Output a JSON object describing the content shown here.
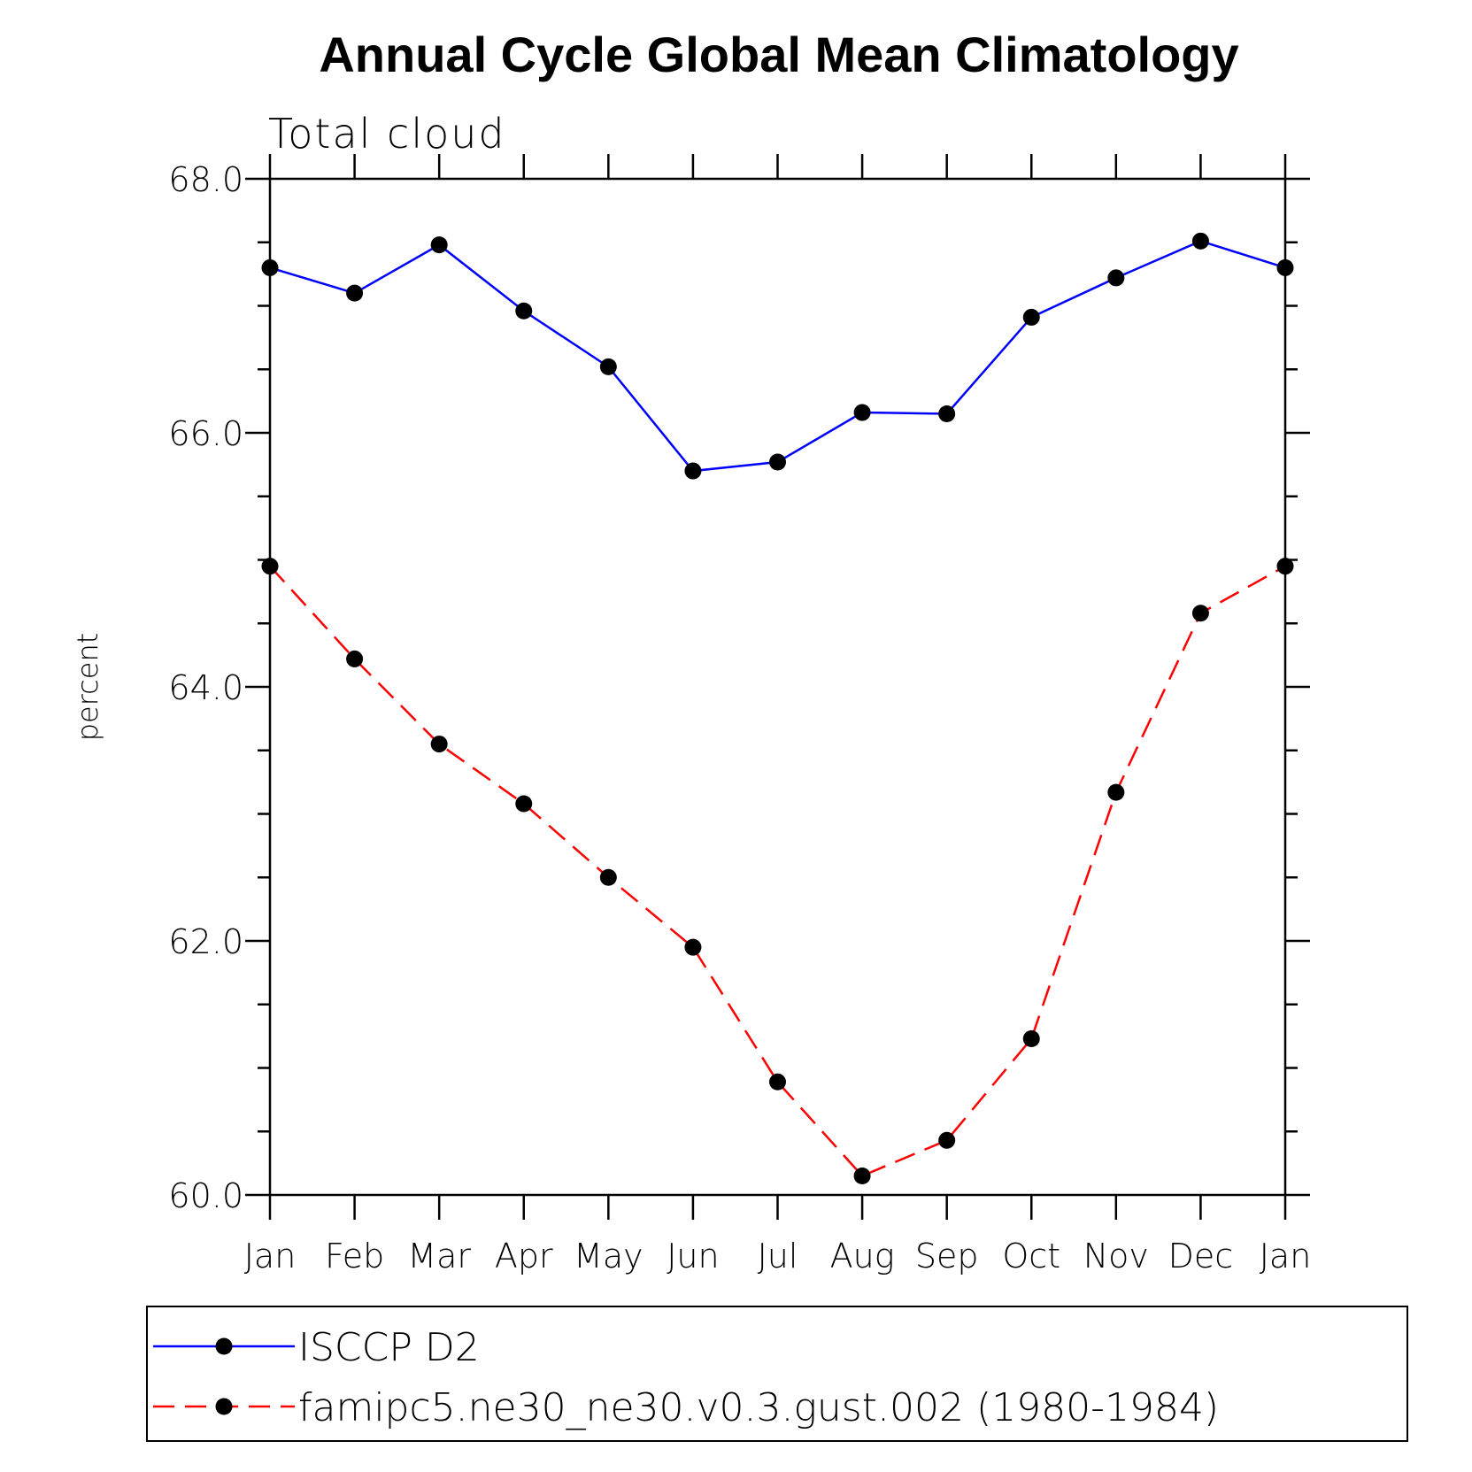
{
  "chart_data": {
    "type": "line",
    "title": "Annual Cycle Global Mean Climatology",
    "subtitle": "Total cloud",
    "ylabel": "percent",
    "xlabel": "",
    "categories": [
      "Jan",
      "Feb",
      "Mar",
      "Apr",
      "May",
      "Jun",
      "Jul",
      "Aug",
      "Sep",
      "Oct",
      "Nov",
      "Dec",
      "Jan"
    ],
    "ylim": [
      60.0,
      68.0
    ],
    "yticks": [
      "60.0",
      "62.0",
      "64.0",
      "66.0",
      "68.0"
    ],
    "y_minor_step": 0.5,
    "grid": false,
    "legend_position": "bottom",
    "series": [
      {
        "name": "ISCCP D2",
        "color": "#0000ff",
        "dash": "solid",
        "marker": "filled-circle",
        "values": [
          67.3,
          67.1,
          67.48,
          66.96,
          66.52,
          65.7,
          65.77,
          66.16,
          66.15,
          66.91,
          67.22,
          67.51,
          67.3
        ]
      },
      {
        "name": "famipc5.ne30_ne30.v0.3.gust.002 (1980-1984)",
        "color": "#ff0000",
        "dash": "dashed",
        "marker": "filled-circle",
        "values": [
          64.95,
          64.22,
          63.55,
          63.08,
          62.5,
          61.95,
          60.89,
          60.15,
          60.43,
          61.23,
          63.17,
          64.58,
          64.95
        ]
      }
    ]
  }
}
